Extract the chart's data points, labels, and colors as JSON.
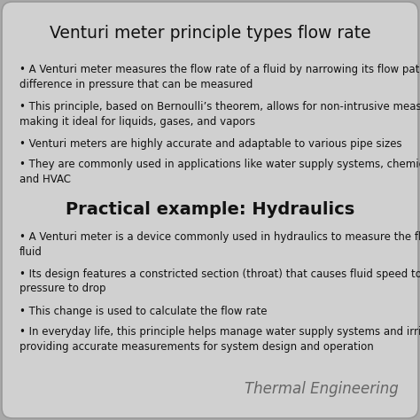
{
  "title": "Venturi meter principle types flow rate",
  "section2_title": "Practical example: Hydraulics",
  "bullet_points_1": [
    "• A Venturi meter measures the flow rate of a fluid by narrowing its flow path, creating a\ndifference in pressure that can be measured",
    "• This principle, based on Bernoulli’s theorem, allows for non-intrusive measurement,\nmaking it ideal for liquids, gases, and vapors",
    "• Venturi meters are highly accurate and adaptable to various pipe sizes",
    "• They are commonly used in applications like water supply systems, chemical processing,\nand HVAC"
  ],
  "bullet_points_2": [
    "• A Venturi meter is a device commonly used in hydraulics to measure the flow rate of a\nfluid",
    "• Its design features a constricted section (throat) that causes fluid speed to increase and\npressure to drop",
    "• This change is used to calculate the flow rate",
    "• In everyday life, this principle helps manage water supply systems and irrigation by\nproviding accurate measurements for system design and operation"
  ],
  "watermark": "Thermal Engineering",
  "bg_color": "#a8a8a8",
  "card_color": "#d0d0d0",
  "title_font_size": 13.5,
  "section2_font_size": 14,
  "bullet_font_size": 8.5,
  "watermark_font_size": 12,
  "text_color": "#111111",
  "watermark_color": "#666666"
}
